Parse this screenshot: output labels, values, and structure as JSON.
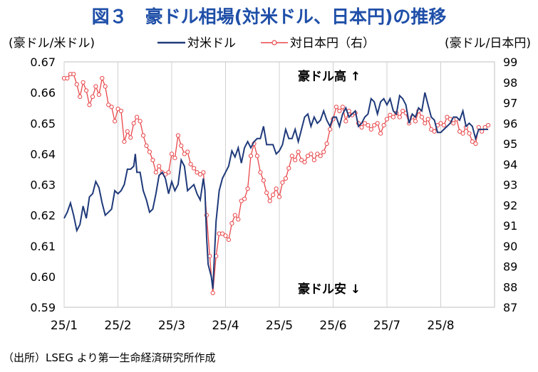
{
  "title": "図３　豪ドル相場(対米ドル、日本円)の推移",
  "source": "（出所）LSEG より第一生命経済研究所作成",
  "colors": {
    "usd_line": "#1f3a7a",
    "jpy_line": "#e8474a",
    "title": "#1f4fa8"
  },
  "chart_data": {
    "type": "line",
    "title": "図３　豪ドル相場(対米ドル、日本円)の推移",
    "left_axis": {
      "label": "(豪ドル/米ドル)",
      "min": 0.59,
      "max": 0.67,
      "ticks": [
        "0.59",
        "0.60",
        "0.61",
        "0.62",
        "0.63",
        "0.64",
        "0.65",
        "0.66",
        "0.67"
      ]
    },
    "right_axis": {
      "label": "(豪ドル/日本円)",
      "min": 87,
      "max": 99,
      "ticks": [
        "87",
        "88",
        "89",
        "90",
        "91",
        "92",
        "93",
        "94",
        "95",
        "96",
        "97",
        "98",
        "99"
      ]
    },
    "x_ticks": [
      "25/1",
      "25/2",
      "25/3",
      "25/4",
      "25/5",
      "25/6",
      "25/7",
      "25/8"
    ],
    "legend": [
      "対米ドル",
      "対日本円（右）"
    ],
    "annotations": [
      "豪ドル高",
      "豪ドル安"
    ],
    "series": [
      {
        "name": "対米ドル",
        "axis": "left",
        "values": [
          [
            0,
            0.619
          ],
          [
            0.2,
            0.621
          ],
          [
            0.4,
            0.624
          ],
          [
            0.6,
            0.62
          ],
          [
            0.8,
            0.615
          ],
          [
            1.0,
            0.617
          ],
          [
            1.2,
            0.623
          ],
          [
            1.4,
            0.619
          ],
          [
            1.6,
            0.626
          ],
          [
            1.8,
            0.627
          ],
          [
            2.0,
            0.631
          ],
          [
            2.2,
            0.629
          ],
          [
            2.4,
            0.624
          ],
          [
            2.6,
            0.62
          ],
          [
            2.8,
            0.621
          ],
          [
            3.0,
            0.622
          ],
          [
            3.2,
            0.628
          ],
          [
            3.4,
            0.627
          ],
          [
            3.6,
            0.628
          ],
          [
            3.8,
            0.63
          ],
          [
            4.0,
            0.635
          ],
          [
            4.2,
            0.635
          ],
          [
            4.4,
            0.636
          ],
          [
            4.5,
            0.64
          ],
          [
            4.6,
            0.634
          ],
          [
            4.8,
            0.634
          ],
          [
            5.0,
            0.628
          ],
          [
            5.2,
            0.625
          ],
          [
            5.4,
            0.621
          ],
          [
            5.6,
            0.622
          ],
          [
            5.8,
            0.627
          ],
          [
            6.0,
            0.633
          ],
          [
            6.2,
            0.634
          ],
          [
            6.4,
            0.632
          ],
          [
            6.6,
            0.627
          ],
          [
            6.8,
            0.631
          ],
          [
            7.0,
            0.628
          ],
          [
            7.2,
            0.63
          ],
          [
            7.4,
            0.638
          ],
          [
            7.6,
            0.636
          ],
          [
            7.8,
            0.628
          ],
          [
            8.0,
            0.629
          ],
          [
            8.2,
            0.63
          ],
          [
            8.4,
            0.627
          ],
          [
            8.6,
            0.625
          ],
          [
            8.8,
            0.632
          ],
          [
            8.9,
            0.628
          ],
          [
            9.0,
            0.613
          ],
          [
            9.1,
            0.604
          ],
          [
            9.3,
            0.6
          ],
          [
            9.4,
            0.596
          ],
          [
            9.6,
            0.618
          ],
          [
            9.8,
            0.628
          ],
          [
            10.0,
            0.632
          ],
          [
            10.2,
            0.634
          ],
          [
            10.4,
            0.636
          ],
          [
            10.6,
            0.641
          ],
          [
            10.8,
            0.639
          ],
          [
            11.0,
            0.642
          ],
          [
            11.2,
            0.637
          ],
          [
            11.4,
            0.642
          ],
          [
            11.6,
            0.644
          ],
          [
            11.8,
            0.642
          ],
          [
            12.0,
            0.644
          ],
          [
            12.2,
            0.645
          ],
          [
            12.4,
            0.645
          ],
          [
            12.6,
            0.649
          ],
          [
            12.8,
            0.643
          ],
          [
            13.0,
            0.643
          ],
          [
            13.2,
            0.643
          ],
          [
            13.4,
            0.64
          ],
          [
            13.6,
            0.641
          ],
          [
            13.8,
            0.643
          ],
          [
            14.0,
            0.648
          ],
          [
            14.2,
            0.645
          ],
          [
            14.4,
            0.645
          ],
          [
            14.6,
            0.648
          ],
          [
            14.8,
            0.644
          ],
          [
            15.0,
            0.648
          ],
          [
            15.2,
            0.652
          ],
          [
            15.4,
            0.653
          ],
          [
            15.6,
            0.649
          ],
          [
            15.8,
            0.652
          ],
          [
            16.0,
            0.65
          ],
          [
            16.2,
            0.651
          ],
          [
            16.4,
            0.654
          ],
          [
            16.6,
            0.651
          ],
          [
            16.8,
            0.649
          ],
          [
            17.0,
            0.652
          ],
          [
            17.2,
            0.652
          ],
          [
            17.4,
            0.649
          ],
          [
            17.6,
            0.653
          ],
          [
            17.8,
            0.655
          ],
          [
            18.0,
            0.652
          ],
          [
            18.2,
            0.653
          ],
          [
            18.4,
            0.654
          ],
          [
            18.6,
            0.649
          ],
          [
            18.8,
            0.65
          ],
          [
            19.0,
            0.652
          ],
          [
            19.2,
            0.653
          ],
          [
            19.4,
            0.658
          ],
          [
            19.6,
            0.657
          ],
          [
            19.8,
            0.653
          ],
          [
            20.0,
            0.657
          ],
          [
            20.2,
            0.658
          ],
          [
            20.4,
            0.656
          ],
          [
            20.6,
            0.658
          ],
          [
            20.8,
            0.654
          ],
          [
            21.0,
            0.653
          ],
          [
            21.2,
            0.659
          ],
          [
            21.4,
            0.658
          ],
          [
            21.6,
            0.656
          ],
          [
            21.8,
            0.65
          ],
          [
            22.0,
            0.653
          ],
          [
            22.2,
            0.652
          ],
          [
            22.4,
            0.655
          ],
          [
            22.6,
            0.654
          ],
          [
            22.8,
            0.66
          ],
          [
            23.0,
            0.656
          ],
          [
            23.2,
            0.652
          ],
          [
            23.4,
            0.651
          ],
          [
            23.6,
            0.647
          ],
          [
            23.8,
            0.647
          ],
          [
            24.0,
            0.648
          ],
          [
            24.2,
            0.649
          ],
          [
            24.4,
            0.65
          ],
          [
            24.6,
            0.652
          ],
          [
            24.8,
            0.652
          ],
          [
            25.0,
            0.651
          ],
          [
            25.2,
            0.654
          ],
          [
            25.4,
            0.649
          ],
          [
            25.6,
            0.65
          ],
          [
            25.8,
            0.649
          ],
          [
            26.0,
            0.645
          ],
          [
            26.2,
            0.648
          ],
          [
            26.4,
            0.648
          ],
          [
            26.6,
            0.648
          ],
          [
            26.8,
            0.648
          ]
        ]
      },
      {
        "name": "対日本円（右）",
        "axis": "right",
        "values": [
          [
            0,
            98.2
          ],
          [
            0.2,
            98.2
          ],
          [
            0.4,
            98.4
          ],
          [
            0.6,
            98.4
          ],
          [
            0.8,
            97.9
          ],
          [
            1.0,
            97.3
          ],
          [
            1.2,
            98.0
          ],
          [
            1.4,
            97.6
          ],
          [
            1.6,
            96.9
          ],
          [
            1.8,
            97.3
          ],
          [
            2.0,
            97.8
          ],
          [
            2.2,
            97.4
          ],
          [
            2.4,
            98.2
          ],
          [
            2.6,
            97.8
          ],
          [
            2.8,
            96.9
          ],
          [
            3.0,
            96.8
          ],
          [
            3.2,
            96.1
          ],
          [
            3.4,
            96.7
          ],
          [
            3.6,
            96.6
          ],
          [
            3.8,
            95.1
          ],
          [
            4.0,
            95.6
          ],
          [
            4.2,
            95.3
          ],
          [
            4.4,
            96.0
          ],
          [
            4.6,
            96.3
          ],
          [
            4.8,
            96.1
          ],
          [
            5.0,
            95.4
          ],
          [
            5.2,
            94.9
          ],
          [
            5.4,
            94.6
          ],
          [
            5.6,
            94.2
          ],
          [
            5.8,
            93.6
          ],
          [
            6.0,
            93.9
          ],
          [
            6.2,
            93.6
          ],
          [
            6.4,
            93.5
          ],
          [
            6.6,
            93.6
          ],
          [
            6.8,
            94.5
          ],
          [
            7.0,
            94.3
          ],
          [
            7.2,
            95.4
          ],
          [
            7.4,
            94.9
          ],
          [
            7.6,
            94.5
          ],
          [
            7.8,
            94.6
          ],
          [
            8.0,
            94.0
          ],
          [
            8.2,
            93.8
          ],
          [
            8.4,
            93.6
          ],
          [
            8.6,
            93.5
          ],
          [
            8.8,
            93.6
          ],
          [
            9.0,
            91.5
          ],
          [
            9.2,
            89.5
          ],
          [
            9.4,
            87.7
          ],
          [
            9.6,
            89.5
          ],
          [
            9.8,
            90.6
          ],
          [
            10.0,
            90.6
          ],
          [
            10.2,
            90.5
          ],
          [
            10.4,
            90.3
          ],
          [
            10.6,
            91.1
          ],
          [
            10.8,
            91.5
          ],
          [
            11.0,
            91.3
          ],
          [
            11.2,
            92.2
          ],
          [
            11.4,
            92.3
          ],
          [
            11.6,
            92.8
          ],
          [
            11.8,
            94.4
          ],
          [
            12.0,
            95.0
          ],
          [
            12.2,
            94.4
          ],
          [
            12.4,
            93.6
          ],
          [
            12.6,
            93.2
          ],
          [
            12.8,
            92.6
          ],
          [
            13.0,
            92.2
          ],
          [
            13.2,
            92.5
          ],
          [
            13.4,
            92.8
          ],
          [
            13.6,
            92.4
          ],
          [
            13.8,
            93.1
          ],
          [
            14.0,
            93.3
          ],
          [
            14.2,
            93.8
          ],
          [
            14.4,
            94.4
          ],
          [
            14.6,
            94.2
          ],
          [
            14.8,
            94.6
          ],
          [
            15.0,
            94.2
          ],
          [
            15.2,
            94.1
          ],
          [
            15.4,
            94.4
          ],
          [
            15.6,
            94.5
          ],
          [
            15.8,
            94.2
          ],
          [
            16.0,
            94.5
          ],
          [
            16.2,
            94.4
          ],
          [
            16.4,
            94.6
          ],
          [
            16.6,
            95.0
          ],
          [
            16.8,
            95.7
          ],
          [
            17.0,
            96.2
          ],
          [
            17.2,
            96.8
          ],
          [
            17.4,
            96.6
          ],
          [
            17.6,
            96.8
          ],
          [
            17.8,
            96.1
          ],
          [
            18.0,
            96.6
          ],
          [
            18.2,
            96.4
          ],
          [
            18.4,
            96.5
          ],
          [
            18.6,
            96.0
          ],
          [
            18.8,
            95.8
          ],
          [
            19.0,
            96.0
          ],
          [
            19.2,
            95.9
          ],
          [
            19.4,
            95.7
          ],
          [
            19.6,
            95.9
          ],
          [
            19.8,
            96.0
          ],
          [
            20.0,
            95.5
          ],
          [
            20.2,
            95.9
          ],
          [
            20.4,
            96.2
          ],
          [
            20.6,
            96.4
          ],
          [
            20.8,
            96.3
          ],
          [
            21.0,
            96.5
          ],
          [
            21.2,
            96.3
          ],
          [
            21.4,
            96.6
          ],
          [
            21.6,
            96.5
          ],
          [
            21.8,
            96.0
          ],
          [
            22.0,
            96.3
          ],
          [
            22.2,
            96.1
          ],
          [
            22.4,
            96.6
          ],
          [
            22.6,
            96.3
          ],
          [
            22.8,
            96.0
          ],
          [
            23.0,
            96.2
          ],
          [
            23.2,
            95.7
          ],
          [
            23.4,
            95.6
          ],
          [
            23.6,
            95.9
          ],
          [
            23.8,
            96.0
          ],
          [
            24.0,
            95.9
          ],
          [
            24.2,
            96.3
          ],
          [
            24.4,
            96.2
          ],
          [
            24.6,
            96.0
          ],
          [
            24.8,
            96.2
          ],
          [
            25.0,
            95.6
          ],
          [
            25.2,
            95.5
          ],
          [
            25.4,
            95.8
          ],
          [
            25.6,
            95.5
          ],
          [
            25.8,
            95.1
          ],
          [
            26.0,
            95.0
          ],
          [
            26.2,
            95.8
          ],
          [
            26.4,
            95.6
          ],
          [
            26.6,
            95.8
          ],
          [
            26.8,
            95.9
          ]
        ]
      }
    ]
  }
}
